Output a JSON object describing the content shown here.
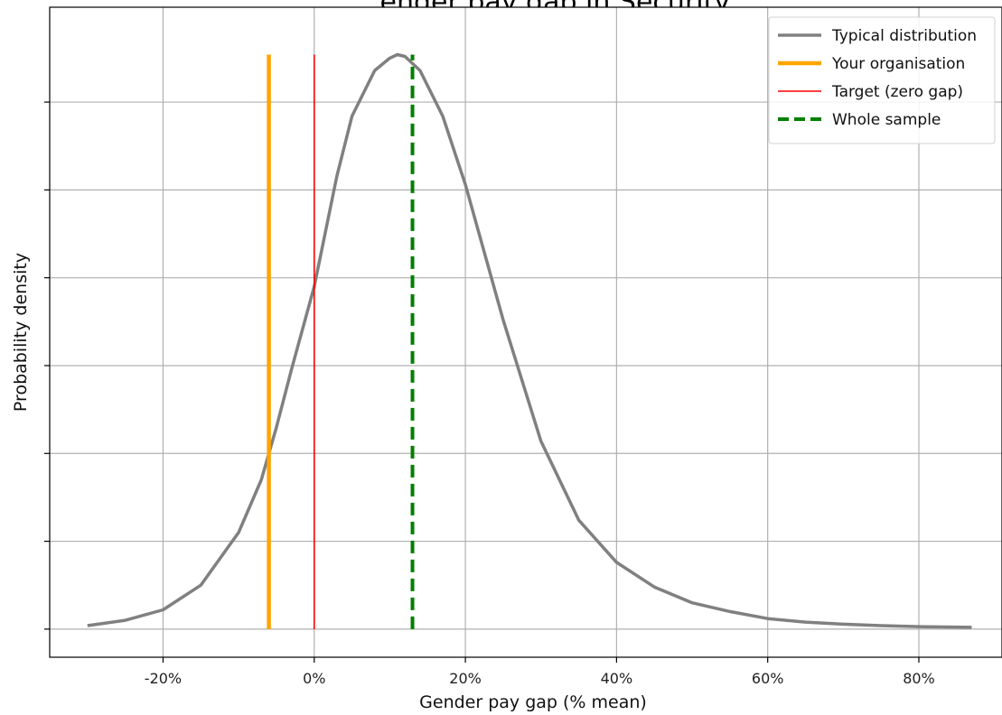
{
  "chart_data": {
    "type": "line",
    "title": "...ender pay gap in Security",
    "xlabel": "Gender pay gap (% mean)",
    "ylabel": "Probability density",
    "xlim": [
      -35,
      91
    ],
    "ylim": [
      -0.0016,
      0.0354
    ],
    "xticks": [
      -20,
      0,
      20,
      40,
      60,
      80
    ],
    "xtick_labels": [
      "-20%",
      "0%",
      "20%",
      "40%",
      "60%",
      "80%"
    ],
    "yticks": [
      0,
      0.005,
      0.01,
      0.015,
      0.02,
      0.025,
      0.03
    ],
    "grid": true,
    "legend_position": "top-right",
    "series": [
      {
        "name": "Typical distribution",
        "color": "#808080",
        "x": [
          -30,
          -25,
          -20,
          -15,
          -10,
          -7,
          -5,
          -3,
          0,
          3,
          5,
          8,
          10,
          11,
          12,
          14,
          17,
          20,
          25,
          30,
          35,
          40,
          45,
          50,
          55,
          60,
          65,
          70,
          75,
          80,
          87
        ],
        "y": [
          0.0002,
          0.0005,
          0.0011,
          0.0025,
          0.0055,
          0.0085,
          0.0115,
          0.0148,
          0.0195,
          0.0258,
          0.0292,
          0.0318,
          0.0325,
          0.0327,
          0.0326,
          0.0318,
          0.0292,
          0.0253,
          0.0176,
          0.0107,
          0.0062,
          0.0038,
          0.0024,
          0.0015,
          0.001,
          0.0006,
          0.0004,
          0.00028,
          0.0002,
          0.00014,
          0.0001
        ]
      }
    ],
    "vlines": [
      {
        "name": "Your organisation",
        "x": -6,
        "ymin": 0,
        "ymax": 0.0327,
        "color": "#ffa500",
        "style": "solid-thick"
      },
      {
        "name": "Target (zero gap)",
        "x": 0,
        "ymin": 0,
        "ymax": 0.0327,
        "color": "#ff0000",
        "style": "solid-thin"
      },
      {
        "name": "Whole sample",
        "x": 13,
        "ymin": 0,
        "ymax": 0.0327,
        "color": "#008000",
        "style": "dashed"
      }
    ]
  }
}
